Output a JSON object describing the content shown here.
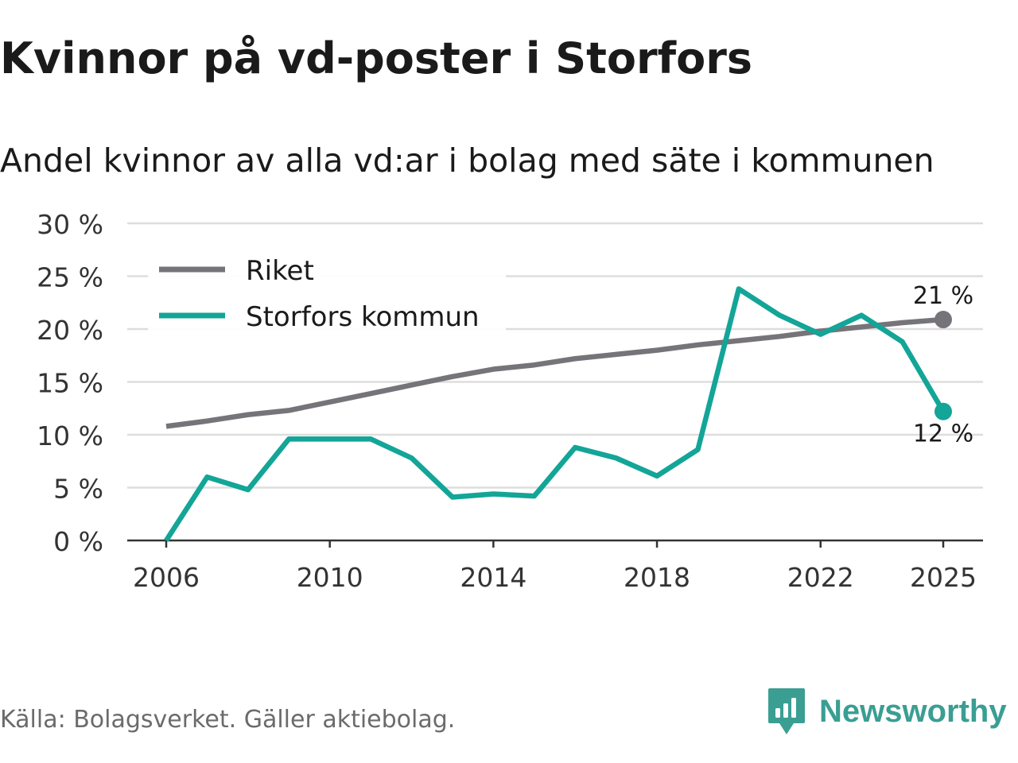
{
  "header": {
    "title": "Kvinnor på vd-poster i Storfors",
    "subtitle": "Andel kvinnor av alla vd:ar i bolag med säte i kommunen"
  },
  "footer": {
    "source": "Källa: Bolagsverket. Gäller aktiebolag.",
    "brand": "Newsworthy",
    "brand_icon": "newsworthy-logo-icon"
  },
  "colors": {
    "riket": "#767479",
    "storfors": "#13a597",
    "grid": "#dddddd",
    "axis": "#333333",
    "brand": "#3a9e93"
  },
  "chart_data": {
    "type": "line",
    "title": "Kvinnor på vd-poster i Storfors",
    "subtitle": "Andel kvinnor av alla vd:ar i bolag med säte i kommunen",
    "xlabel": "",
    "ylabel": "",
    "x": [
      2006,
      2007,
      2008,
      2009,
      2010,
      2011,
      2012,
      2013,
      2014,
      2015,
      2016,
      2017,
      2018,
      2019,
      2020,
      2021,
      2022,
      2023,
      2024,
      2025
    ],
    "xlim": [
      2006,
      2025
    ],
    "ylim": [
      0,
      30
    ],
    "x_ticks": [
      2006,
      2010,
      2014,
      2018,
      2022,
      2025
    ],
    "y_ticks": [
      0,
      5,
      10,
      15,
      20,
      25,
      30
    ],
    "y_tick_labels": [
      "0 %",
      "5 %",
      "10 %",
      "15 %",
      "20 %",
      "25 %",
      "30 %"
    ],
    "grid": true,
    "legend_position": "top-left",
    "series": [
      {
        "name": "Riket",
        "color": "#767479",
        "values": [
          10.8,
          11.3,
          11.9,
          12.3,
          13.1,
          13.9,
          14.7,
          15.5,
          16.2,
          16.6,
          17.2,
          17.6,
          18.0,
          18.5,
          18.9,
          19.3,
          19.8,
          20.2,
          20.6,
          20.9
        ],
        "end_label": "21 %"
      },
      {
        "name": "Storfors kommun",
        "color": "#13a597",
        "values": [
          0.0,
          6.0,
          4.8,
          9.6,
          9.6,
          9.6,
          7.8,
          4.1,
          4.4,
          4.2,
          8.8,
          7.8,
          6.1,
          8.6,
          23.8,
          21.3,
          19.5,
          21.3,
          18.8,
          12.2
        ],
        "end_label": "12 %"
      }
    ]
  }
}
